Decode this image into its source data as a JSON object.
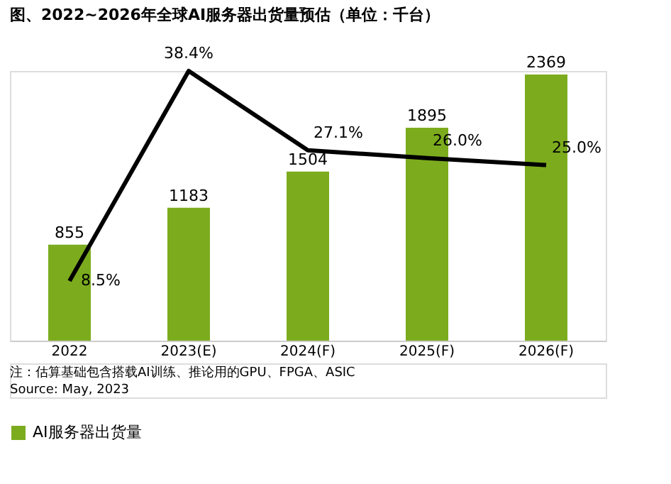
{
  "chart_data": {
    "type": "bar",
    "title": "图、2022~2026年全球AI服务器出货量预估（单位：千台）",
    "categories": [
      "2022",
      "2023(E)",
      "2024(F)",
      "2025(F)",
      "2026(F)"
    ],
    "series": [
      {
        "name": "AI服务器出货量",
        "color": "#7cac1e",
        "values": [
          855,
          1183,
          1504,
          1895,
          2369
        ],
        "value_labels": [
          "855",
          "1183",
          "1504",
          "1895",
          "2369"
        ]
      },
      {
        "type": "line",
        "axis": "y2",
        "color": "#000000",
        "values": [
          8.5,
          38.4,
          27.1,
          26.0,
          25.0
        ],
        "value_labels": [
          "8.5%",
          "38.4%",
          "27.1%",
          "26.0%",
          "25.0%"
        ]
      }
    ],
    "legend": "bottom",
    "marker": "none",
    "line_style": "solid",
    "tick_labels": "x",
    "annotations": [
      "注：估算基础包含搭载AI训练、推论用的GPU、FPGA、ASIC",
      "Source: May, 2023"
    ]
  }
}
